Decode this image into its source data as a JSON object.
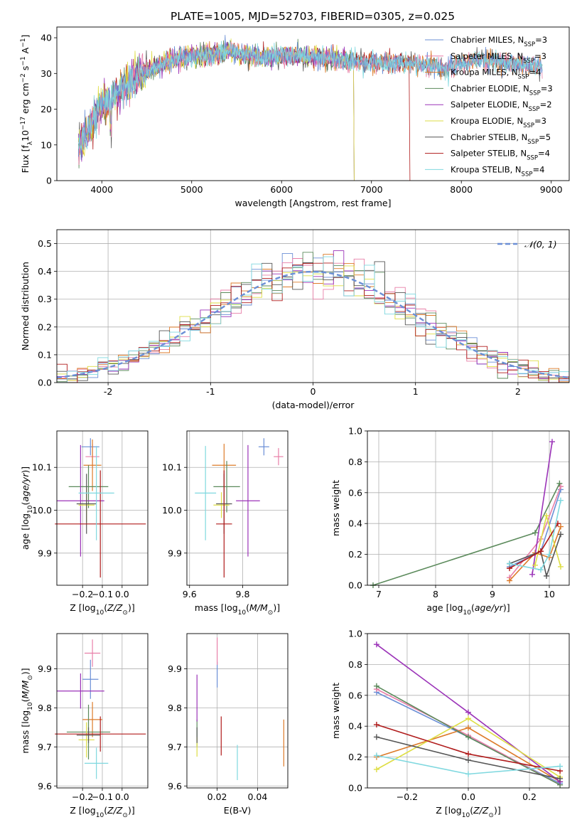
{
  "title": "PLATE=1005, MJD=52703, FIBERID=0305, z=0.025",
  "colors": {
    "Chabrier MILES": "#6b8fd6",
    "Salpeter MILES": "#e87fa8",
    "Kroupa MILES": "#dd7b2a",
    "Chabrier ELODIE": "#5b8a5b",
    "Salpeter ELODIE": "#9b33b8",
    "Kroupa ELODIE": "#dede45",
    "Chabrier STELIB": "#555555",
    "Salpeter STELIB": "#b01b1b",
    "Kroupa STELIB": "#7fd8df"
  },
  "chart_data": [
    {
      "id": "spectrum",
      "type": "line",
      "title": "PLATE=1005, MJD=52703, FIBERID=0305, z=0.025",
      "xlabel": "wavelength [Angstrom, rest frame]",
      "ylabel": "Flux [f_λ10^{-17} erg cm^{-2} s^{-1} A^{-1}]",
      "xlim": [
        3500,
        9200
      ],
      "ylim": [
        0,
        43
      ],
      "xticks": [
        4000,
        5000,
        6000,
        7000,
        8000,
        9000
      ],
      "yticks": [
        0,
        10,
        20,
        30,
        40
      ],
      "grid": false,
      "legend_position": "top-right",
      "continuum": [
        [
          3740,
          9
        ],
        [
          3800,
          12
        ],
        [
          3900,
          17
        ],
        [
          4000,
          21
        ],
        [
          4100,
          23
        ],
        [
          4200,
          25
        ],
        [
          4400,
          29
        ],
        [
          4600,
          32
        ],
        [
          4800,
          34
        ],
        [
          5000,
          35
        ],
        [
          5200,
          35
        ],
        [
          5400,
          36.5
        ],
        [
          5600,
          35
        ],
        [
          5800,
          34.5
        ],
        [
          6000,
          35
        ],
        [
          6200,
          35
        ],
        [
          6400,
          34.5
        ],
        [
          6600,
          34
        ],
        [
          6800,
          33.5
        ],
        [
          7000,
          33
        ],
        [
          7200,
          33
        ],
        [
          7400,
          33
        ],
        [
          7600,
          32.5
        ],
        [
          7800,
          31
        ],
        [
          8000,
          33
        ],
        [
          8200,
          34
        ],
        [
          8400,
          33.5
        ],
        [
          8600,
          32.5
        ],
        [
          8800,
          32
        ],
        [
          8900,
          32
        ]
      ],
      "series": [
        {
          "name": "Chabrier MILES, N_SSP=3",
          "end": 8900
        },
        {
          "name": "Salpeter MILES, N_SSP=3",
          "end": 8900
        },
        {
          "name": "Kroupa MILES, N_SSP=4",
          "end": 8900
        },
        {
          "name": "Chabrier ELODIE, N_SSP=3",
          "end": 6800
        },
        {
          "name": "Salpeter ELODIE, N_SSP=2",
          "end": 6800
        },
        {
          "name": "Kroupa ELODIE, N_SSP=3",
          "end": 6800
        },
        {
          "name": "Chabrier STELIB, N_SSP=5",
          "end": 8900
        },
        {
          "name": "Salpeter STELIB, N_SSP=4",
          "end": 7420
        },
        {
          "name": "Kroupa STELIB, N_SSP=4",
          "end": 8900
        }
      ],
      "legend_labels": [
        {
          "base": "Chabrier MILES, N",
          "sub": "SSP",
          "tail": "=3"
        },
        {
          "base": "Salpeter MILES, N",
          "sub": "SSP",
          "tail": "=3"
        },
        {
          "base": "Kroupa MILES, N",
          "sub": "SSP",
          "tail": "=4"
        },
        {
          "base": "Chabrier ELODIE, N",
          "sub": "SSP",
          "tail": "=3"
        },
        {
          "base": "Salpeter ELODIE, N",
          "sub": "SSP",
          "tail": "=2"
        },
        {
          "base": "Kroupa ELODIE, N",
          "sub": "SSP",
          "tail": "=3"
        },
        {
          "base": "Chabrier STELIB, N",
          "sub": "SSP",
          "tail": "=5"
        },
        {
          "base": "Salpeter STELIB, N",
          "sub": "SSP",
          "tail": "=4"
        },
        {
          "base": "Kroupa STELIB, N",
          "sub": "SSP",
          "tail": "=4"
        }
      ]
    },
    {
      "id": "residuals",
      "type": "line",
      "xlabel": "(data-model)/error",
      "ylabel": "Normed distribution",
      "xlim": [
        -2.5,
        2.5
      ],
      "ylim": [
        0,
        0.55
      ],
      "xticks": [
        -2,
        -1,
        0,
        1,
        2
      ],
      "yticks": [
        0.0,
        0.1,
        0.2,
        0.3,
        0.4,
        0.5
      ],
      "grid": true,
      "legend": "𝒩(0, 1)",
      "legend_position": "top-right",
      "reference": "normal distribution, mean 0, sigma 1 (dashed)",
      "bin_width": 0.1
    },
    {
      "id": "age_vs_Z",
      "type": "scatter",
      "xlabel": "Z [log10(Z/Z⊙)]",
      "ylabel": "age [log10(age/yr)]",
      "xlim": [
        -0.33,
        0.13
      ],
      "ylim": [
        9.825,
        10.185
      ],
      "xticks": [
        -0.2,
        -0.1,
        0.0
      ],
      "yticks": [
        9.9,
        10.0,
        10.1
      ],
      "grid": true,
      "points": [
        {
          "m": "Chabrier MILES",
          "x": -0.16,
          "y": 10.148,
          "xe": 0.045,
          "ye": 0.02
        },
        {
          "m": "Salpeter MILES",
          "x": -0.15,
          "y": 10.125,
          "xe": 0.035,
          "ye": 0.03
        },
        {
          "m": "Kroupa MILES",
          "x": -0.15,
          "y": 10.105,
          "xe": 0.045,
          "ye": 0.06
        },
        {
          "m": "Chabrier ELODIE",
          "x": -0.17,
          "y": 10.055,
          "xe": 0.1,
          "ye": 0.05
        },
        {
          "m": "Salpeter ELODIE",
          "x": -0.21,
          "y": 10.022,
          "xe": 0.12,
          "ye": 0.13
        },
        {
          "m": "Kroupa ELODIE",
          "x": -0.18,
          "y": 10.012,
          "xe": 0.04,
          "ye": 0.04
        },
        {
          "m": "Chabrier STELIB",
          "x": -0.18,
          "y": 10.015,
          "xe": 0.05,
          "ye": 0.07
        },
        {
          "m": "Salpeter STELIB",
          "x": -0.11,
          "y": 9.968,
          "xe": 0.23,
          "ye": 0.125
        },
        {
          "m": "Kroupa STELIB",
          "x": -0.13,
          "y": 10.04,
          "xe": 0.09,
          "ye": 0.11
        }
      ]
    },
    {
      "id": "age_vs_mass",
      "type": "scatter",
      "xlabel": "mass [log10(M/M⊙)]",
      "ylabel": "",
      "xlim": [
        9.59,
        9.97
      ],
      "ylim": [
        9.825,
        10.185
      ],
      "xticks": [
        9.6,
        9.8
      ],
      "yticks": [
        9.9,
        10.0,
        10.1
      ],
      "grid": true,
      "points": [
        {
          "m": "Chabrier MILES",
          "x": 9.88,
          "y": 10.148,
          "xe": 0.02,
          "ye": 0.02
        },
        {
          "m": "Salpeter MILES",
          "x": 9.935,
          "y": 10.125,
          "xe": 0.018,
          "ye": 0.02
        },
        {
          "m": "Kroupa MILES",
          "x": 9.73,
          "y": 10.105,
          "xe": 0.045,
          "ye": 0.05
        },
        {
          "m": "Chabrier ELODIE",
          "x": 9.74,
          "y": 10.055,
          "xe": 0.05,
          "ye": 0.06
        },
        {
          "m": "Salpeter ELODIE",
          "x": 9.82,
          "y": 10.022,
          "xe": 0.045,
          "ye": 0.13
        },
        {
          "m": "Kroupa ELODIE",
          "x": 9.72,
          "y": 10.012,
          "xe": 0.03,
          "ye": 0.03
        },
        {
          "m": "Chabrier STELIB",
          "x": 9.73,
          "y": 10.015,
          "xe": 0.03,
          "ye": 0.07
        },
        {
          "m": "Salpeter STELIB",
          "x": 9.73,
          "y": 9.968,
          "xe": 0.03,
          "ye": 0.125
        },
        {
          "m": "Kroupa STELIB",
          "x": 9.66,
          "y": 10.04,
          "xe": 0.04,
          "ye": 0.11
        }
      ]
    },
    {
      "id": "weight_vs_age",
      "type": "line",
      "xlabel": "age [log10(age/yr)]",
      "ylabel": "mass weight",
      "xlim": [
        6.8,
        10.35
      ],
      "ylim": [
        0,
        1
      ],
      "xticks": [
        7,
        8,
        9,
        10
      ],
      "yticks": [
        0.0,
        0.2,
        0.4,
        0.6,
        0.8,
        1.0
      ],
      "grid": true,
      "series": [
        {
          "m": "Chabrier MILES",
          "pts": [
            [
              9.3,
              0.12
            ],
            [
              9.85,
              0.22
            ],
            [
              10.2,
              0.62
            ]
          ]
        },
        {
          "m": "Salpeter MILES",
          "pts": [
            [
              9.3,
              0.05
            ],
            [
              9.85,
              0.3
            ],
            [
              10.2,
              0.64
            ]
          ]
        },
        {
          "m": "Kroupa MILES",
          "pts": [
            [
              9.3,
              0.03
            ],
            [
              9.75,
              0.21
            ],
            [
              10.0,
              0.18
            ],
            [
              10.2,
              0.38
            ]
          ]
        },
        {
          "m": "Chabrier ELODIE",
          "pts": [
            [
              6.9,
              0.0
            ],
            [
              9.75,
              0.34
            ],
            [
              10.18,
              0.66
            ]
          ]
        },
        {
          "m": "Salpeter ELODIE",
          "pts": [
            [
              9.7,
              0.07
            ],
            [
              10.05,
              0.93
            ]
          ]
        },
        {
          "m": "Kroupa ELODIE",
          "pts": [
            [
              9.75,
              0.13
            ],
            [
              9.95,
              0.45
            ],
            [
              10.2,
              0.12
            ]
          ]
        },
        {
          "m": "Chabrier STELIB",
          "pts": [
            [
              9.3,
              0.14
            ],
            [
              9.85,
              0.22
            ],
            [
              9.95,
              0.06
            ],
            [
              10.2,
              0.33
            ]
          ]
        },
        {
          "m": "Salpeter STELIB",
          "pts": [
            [
              9.3,
              0.11
            ],
            [
              9.85,
              0.22
            ],
            [
              10.15,
              0.4
            ]
          ]
        },
        {
          "m": "Kroupa STELIB",
          "pts": [
            [
              9.3,
              0.14
            ],
            [
              9.85,
              0.1
            ],
            [
              10.0,
              0.2
            ],
            [
              10.2,
              0.55
            ]
          ]
        }
      ]
    },
    {
      "id": "mass_vs_Z",
      "type": "scatter",
      "xlabel": "Z [log10(Z/Z⊙)]",
      "ylabel": "mass [log10(M/M⊙)]",
      "xlim": [
        -0.33,
        0.13
      ],
      "ylim": [
        9.595,
        9.99
      ],
      "xticks": [
        -0.2,
        -0.1,
        0.0
      ],
      "yticks": [
        9.6,
        9.7,
        9.8,
        9.9
      ],
      "grid": true,
      "points": [
        {
          "m": "Chabrier MILES",
          "x": -0.16,
          "y": 9.873,
          "xe": 0.04,
          "ye": 0.05
        },
        {
          "m": "Salpeter MILES",
          "x": -0.15,
          "y": 9.94,
          "xe": 0.04,
          "ye": 0.035
        },
        {
          "m": "Kroupa MILES",
          "x": -0.15,
          "y": 9.77,
          "xe": 0.05,
          "ye": 0.045
        },
        {
          "m": "Chabrier ELODIE",
          "x": -0.17,
          "y": 9.738,
          "xe": 0.11,
          "ye": 0.07
        },
        {
          "m": "Salpeter ELODIE",
          "x": -0.21,
          "y": 9.843,
          "xe": 0.12,
          "ye": 0.045
        },
        {
          "m": "Kroupa ELODIE",
          "x": -0.18,
          "y": 9.718,
          "xe": 0.04,
          "ye": 0.045
        },
        {
          "m": "Chabrier STELIB",
          "x": -0.17,
          "y": 9.73,
          "xe": 0.06,
          "ye": 0.02
        },
        {
          "m": "Salpeter STELIB",
          "x": -0.11,
          "y": 9.733,
          "xe": 0.23,
          "ye": 0.045
        },
        {
          "m": "Kroupa STELIB",
          "x": -0.13,
          "y": 9.658,
          "xe": 0.06,
          "ye": 0.04
        }
      ]
    },
    {
      "id": "mass_vs_EBV",
      "type": "scatter",
      "xlabel": "E(B-V)",
      "ylabel": "",
      "xlim": [
        0.005,
        0.055
      ],
      "ylim": [
        9.595,
        9.99
      ],
      "xticks": [
        0.02,
        0.04
      ],
      "yticks": [
        9.6,
        9.7,
        9.8,
        9.9
      ],
      "grid": true,
      "points": [
        {
          "m": "Chabrier MILES",
          "x": 0.02,
          "y": 9.885,
          "xe": 0,
          "ye": 0.033
        },
        {
          "m": "Salpeter MILES",
          "x": 0.02,
          "y": 9.945,
          "xe": 0,
          "ye": 0.035
        },
        {
          "m": "Kroupa MILES",
          "x": 0.053,
          "y": 9.71,
          "xe": 0,
          "ye": 0.06
        },
        {
          "m": "Chabrier ELODIE",
          "x": 0.01,
          "y": 9.735,
          "xe": 0,
          "ye": 0.035
        },
        {
          "m": "Salpeter ELODIE",
          "x": 0.01,
          "y": 9.825,
          "xe": 0,
          "ye": 0.06
        },
        {
          "m": "Kroupa ELODIE",
          "x": 0.01,
          "y": 9.7,
          "xe": 0,
          "ye": 0.025
        },
        {
          "m": "Chabrier STELIB",
          "x": 0.01,
          "y": 9.73,
          "xe": 0,
          "ye": 0.02
        },
        {
          "m": "Salpeter STELIB",
          "x": 0.022,
          "y": 9.728,
          "xe": 0,
          "ye": 0.05
        },
        {
          "m": "Kroupa STELIB",
          "x": 0.03,
          "y": 9.66,
          "xe": 0,
          "ye": 0.045
        }
      ]
    },
    {
      "id": "weight_vs_Z",
      "type": "line",
      "xlabel": "Z [log10(Z/Z⊙)]",
      "ylabel": "mass weight",
      "xlim": [
        -0.33,
        0.33
      ],
      "ylim": [
        0,
        1
      ],
      "xticks": [
        -0.2,
        0.0,
        0.2
      ],
      "yticks": [
        0.0,
        0.2,
        0.4,
        0.6,
        0.8,
        1.0
      ],
      "grid": true,
      "series": [
        {
          "m": "Chabrier MILES",
          "pts": [
            [
              -0.3,
              0.62
            ],
            [
              0.0,
              0.33
            ],
            [
              0.3,
              0.03
            ]
          ]
        },
        {
          "m": "Salpeter MILES",
          "pts": [
            [
              -0.3,
              0.64
            ],
            [
              0.0,
              0.34
            ],
            [
              0.3,
              0.02
            ]
          ]
        },
        {
          "m": "Kroupa MILES",
          "pts": [
            [
              -0.3,
              0.2
            ],
            [
              0.0,
              0.39
            ],
            [
              0.3,
              0.04
            ]
          ]
        },
        {
          "m": "Chabrier ELODIE",
          "pts": [
            [
              -0.3,
              0.66
            ],
            [
              0.0,
              0.33
            ],
            [
              0.3,
              0.02
            ]
          ]
        },
        {
          "m": "Salpeter ELODIE",
          "pts": [
            [
              -0.3,
              0.93
            ],
            [
              0.0,
              0.49
            ],
            [
              0.3,
              0.04
            ]
          ]
        },
        {
          "m": "Kroupa ELODIE",
          "pts": [
            [
              -0.3,
              0.12
            ],
            [
              0.0,
              0.45
            ],
            [
              0.3,
              0.07
            ]
          ]
        },
        {
          "m": "Chabrier STELIB",
          "pts": [
            [
              -0.3,
              0.33
            ],
            [
              0.0,
              0.18
            ],
            [
              0.3,
              0.06
            ]
          ]
        },
        {
          "m": "Salpeter STELIB",
          "pts": [
            [
              -0.3,
              0.41
            ],
            [
              0.0,
              0.22
            ],
            [
              0.3,
              0.11
            ]
          ]
        },
        {
          "m": "Kroupa STELIB",
          "pts": [
            [
              -0.3,
              0.21
            ],
            [
              0.0,
              0.09
            ],
            [
              0.3,
              0.14
            ]
          ]
        }
      ]
    }
  ]
}
